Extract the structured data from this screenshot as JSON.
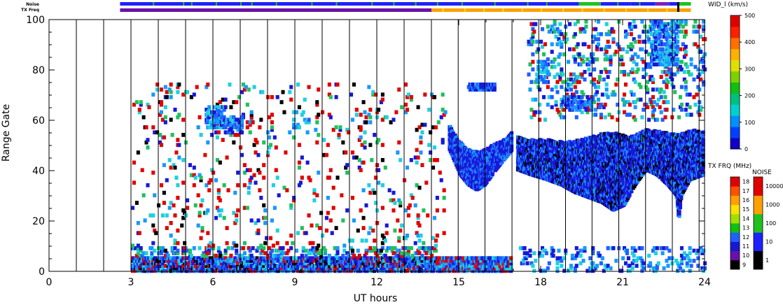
{
  "chart_data": {
    "type": "heatmap",
    "xlabel": "UT hours",
    "ylabel": "Range Gate",
    "xlim": [
      0,
      24
    ],
    "ylim": [
      0,
      100
    ],
    "x_ticks": [
      "0",
      "3",
      "6",
      "9",
      "12",
      "15",
      "18",
      "21",
      "24"
    ],
    "y_ticks": [
      "0",
      "20",
      "40",
      "60",
      "80",
      "100"
    ],
    "vertical_lines_ut": [
      1.0,
      2.0,
      3.0,
      4.0,
      5.0,
      6.0,
      7.0,
      8.0,
      9.0,
      10.0,
      11.0,
      12.0,
      13.0,
      14.0,
      14.98,
      15.96,
      16.95,
      17.93,
      18.91,
      19.88,
      20.86,
      21.84,
      22.82,
      23.8
    ],
    "strip_labels": {
      "noise": "Noise",
      "freq": "TX Freq"
    },
    "strips": {
      "noise": [
        {
          "x0": 2.6,
          "x1": 19.4,
          "color": "#2020ff"
        },
        {
          "x0": 19.4,
          "x1": 20.2,
          "color": "#20c020"
        },
        {
          "x0": 20.2,
          "x1": 21.3,
          "color": "#2020ff"
        },
        {
          "x0": 21.3,
          "x1": 22.2,
          "color": "#2020ff"
        },
        {
          "x0": 22.2,
          "x1": 22.7,
          "color": "#8020c0"
        },
        {
          "x0": 22.7,
          "x1": 23.0,
          "color": "#2020ff"
        },
        {
          "x0": 23.0,
          "x1": 23.5,
          "color": "#20c020"
        }
      ],
      "noise_specks": [
        3.8,
        4.9,
        5.2,
        6.1,
        7.0,
        7.4,
        8.3,
        9.6,
        10.5,
        11.8,
        12.6,
        13.4,
        14.2,
        15.1,
        16.3,
        17.5,
        18.2,
        20.8,
        21.6
      ],
      "freq": [
        {
          "x0": 2.6,
          "x1": 14.0,
          "color": "#6a10a8"
        },
        {
          "x0": 14.0,
          "x1": 23.5,
          "color": "#ffa000"
        }
      ],
      "freq_specks": [
        14.4,
        15.2,
        15.9,
        16.6,
        17.3,
        18.0,
        18.8,
        19.5,
        20.3,
        21.1,
        21.9,
        22.6
      ],
      "end_marks": [
        23.0
      ]
    },
    "velocity_scale": {
      "title": "WID_l (km/s)",
      "ticks": [
        "0",
        "100",
        "200",
        "300",
        "400",
        "500"
      ],
      "colors": [
        "#1000c8",
        "#0040ff",
        "#0090ff",
        "#00d0d0",
        "#00c080",
        "#10c010",
        "#80d000",
        "#e0e000",
        "#ffb000",
        "#ff7000",
        "#ff2000",
        "#e00000"
      ]
    },
    "freq_scale": {
      "title": "TX FRQ (MHz)",
      "ticks": [
        "9",
        "10",
        "11",
        "12",
        "13",
        "14",
        "15",
        "16",
        "17",
        "18"
      ],
      "colors": [
        "#000000",
        "#6a10a8",
        "#1818d0",
        "#2060ff",
        "#10c010",
        "#a0e000",
        "#ffe000",
        "#ffa000",
        "#ff5000",
        "#e00000"
      ]
    },
    "noise_scale": {
      "title": "NOISE",
      "ticks": [
        "1",
        "10",
        "100",
        "1000",
        "10000"
      ],
      "colors": [
        "#000000",
        "#2020ff",
        "#20c020",
        "#ffa000",
        "#e00000"
      ]
    },
    "palette": [
      "#1818d8",
      "#2060ff",
      "#1898ff",
      "#20d0e0",
      "#20c060",
      "#e00000",
      "#1818d8",
      "#000000",
      "#80d000"
    ],
    "regions": [
      {
        "note": "near ground scatter band",
        "x0": 3.0,
        "x1": 14.2,
        "g0": 0,
        "g1": 6,
        "density": 0.78,
        "mix": [
          0,
          0,
          1,
          1,
          2,
          3,
          5,
          7
        ]
      },
      {
        "note": "near band sparse top",
        "x0": 3.0,
        "x1": 14.2,
        "g0": 6,
        "g1": 10,
        "density": 0.22,
        "mix": [
          0,
          1,
          2,
          3,
          5,
          4
        ]
      },
      {
        "note": "dense near range 14-17 UT",
        "x0": 14.2,
        "x1": 16.9,
        "g0": 0,
        "g1": 6,
        "density": 0.85,
        "mix": [
          0,
          1,
          2,
          3,
          5
        ]
      },
      {
        "note": "sparse scatter points",
        "x0": 3.0,
        "x1": 14.5,
        "g0": 6,
        "g1": 75,
        "density": 0.035,
        "mix": [
          5,
          5,
          5,
          6,
          2,
          3,
          4,
          7
        ]
      },
      {
        "note": "sparse echoes after 17 UT",
        "x0": 17.2,
        "x1": 24.0,
        "g0": 0,
        "g1": 10,
        "density": 0.12,
        "mix": [
          0,
          1,
          2,
          3
        ]
      },
      {
        "note": "blob near 6 UT",
        "x0": 5.7,
        "x1": 6.4,
        "g0": 57,
        "g1": 66,
        "density": 0.55,
        "mix": [
          0,
          1,
          2,
          3
        ]
      },
      {
        "note": "blob near 6.4 UT",
        "x0": 6.4,
        "x1": 7.0,
        "g0": 55,
        "g1": 62,
        "density": 0.45,
        "mix": [
          0,
          1,
          2,
          3
        ]
      },
      {
        "note": "small blob 9 UT",
        "x0": 8.9,
        "x1": 9.6,
        "g0": 56,
        "g1": 64,
        "density": 0.15,
        "mix": [
          1,
          2,
          3
        ]
      },
      {
        "note": "band 15-16 UT top",
        "x0": 15.3,
        "x1": 16.3,
        "g0": 72,
        "g1": 75,
        "density": 0.85,
        "mix": [
          0,
          1,
          2
        ]
      },
      {
        "note": "evening scatter upper",
        "x0": 17.5,
        "x1": 24.0,
        "g0": 60,
        "g1": 100,
        "density": 0.12,
        "mix": [
          0,
          1,
          2,
          3,
          5,
          4
        ]
      },
      {
        "note": "evening blob 18 UT",
        "x0": 17.8,
        "x1": 18.3,
        "g0": 75,
        "g1": 85,
        "density": 0.4,
        "mix": [
          1,
          2,
          3
        ]
      },
      {
        "note": "evening blob 19 UT",
        "x0": 18.8,
        "x1": 19.9,
        "g0": 64,
        "g1": 70,
        "density": 0.45,
        "mix": [
          0,
          1,
          2
        ]
      },
      {
        "note": "evening blob 22 UT",
        "x0": 22.0,
        "x1": 23.0,
        "g0": 82,
        "g1": 100,
        "density": 0.4,
        "mix": [
          0,
          1,
          2,
          3
        ]
      }
    ],
    "bands": [
      {
        "note": "F region echo 14.5-17 UT",
        "x0": 14.6,
        "x1": 16.9,
        "density": 0.92,
        "mix": [
          0,
          0,
          6,
          1,
          2
        ],
        "top": [
          [
            14.6,
            58
          ],
          [
            14.9,
            52
          ],
          [
            15.3,
            48
          ],
          [
            15.7,
            47
          ],
          [
            16.2,
            50
          ],
          [
            16.6,
            52
          ],
          [
            16.9,
            55
          ]
        ],
        "bottom": [
          [
            14.6,
            48
          ],
          [
            15.0,
            38
          ],
          [
            15.3,
            34
          ],
          [
            15.6,
            32
          ],
          [
            15.9,
            34
          ],
          [
            16.3,
            40
          ],
          [
            16.6,
            44
          ],
          [
            16.9,
            48
          ]
        ]
      },
      {
        "note": "F region echo 17-24 UT",
        "x0": 17.1,
        "x1": 23.9,
        "density": 0.93,
        "mix": [
          0,
          0,
          6,
          1,
          2,
          7
        ],
        "top": [
          [
            17.1,
            54
          ],
          [
            17.6,
            52
          ],
          [
            18.2,
            52
          ],
          [
            18.8,
            51
          ],
          [
            19.4,
            52
          ],
          [
            20.0,
            54
          ],
          [
            20.6,
            55
          ],
          [
            21.2,
            53
          ],
          [
            21.8,
            56
          ],
          [
            22.4,
            55
          ],
          [
            23.0,
            54
          ],
          [
            23.5,
            56
          ],
          [
            23.9,
            55
          ]
        ],
        "bottom": [
          [
            17.1,
            40
          ],
          [
            17.6,
            38
          ],
          [
            18.2,
            36
          ],
          [
            18.7,
            34
          ],
          [
            19.2,
            31
          ],
          [
            19.7,
            29
          ],
          [
            20.2,
            27
          ],
          [
            20.6,
            24
          ],
          [
            21.0,
            26
          ],
          [
            21.4,
            34
          ],
          [
            21.8,
            40
          ],
          [
            22.2,
            38
          ],
          [
            22.6,
            34
          ],
          [
            22.9,
            30
          ],
          [
            23.0,
            20
          ],
          [
            23.1,
            30
          ],
          [
            23.4,
            36
          ],
          [
            23.9,
            38
          ]
        ]
      }
    ]
  }
}
